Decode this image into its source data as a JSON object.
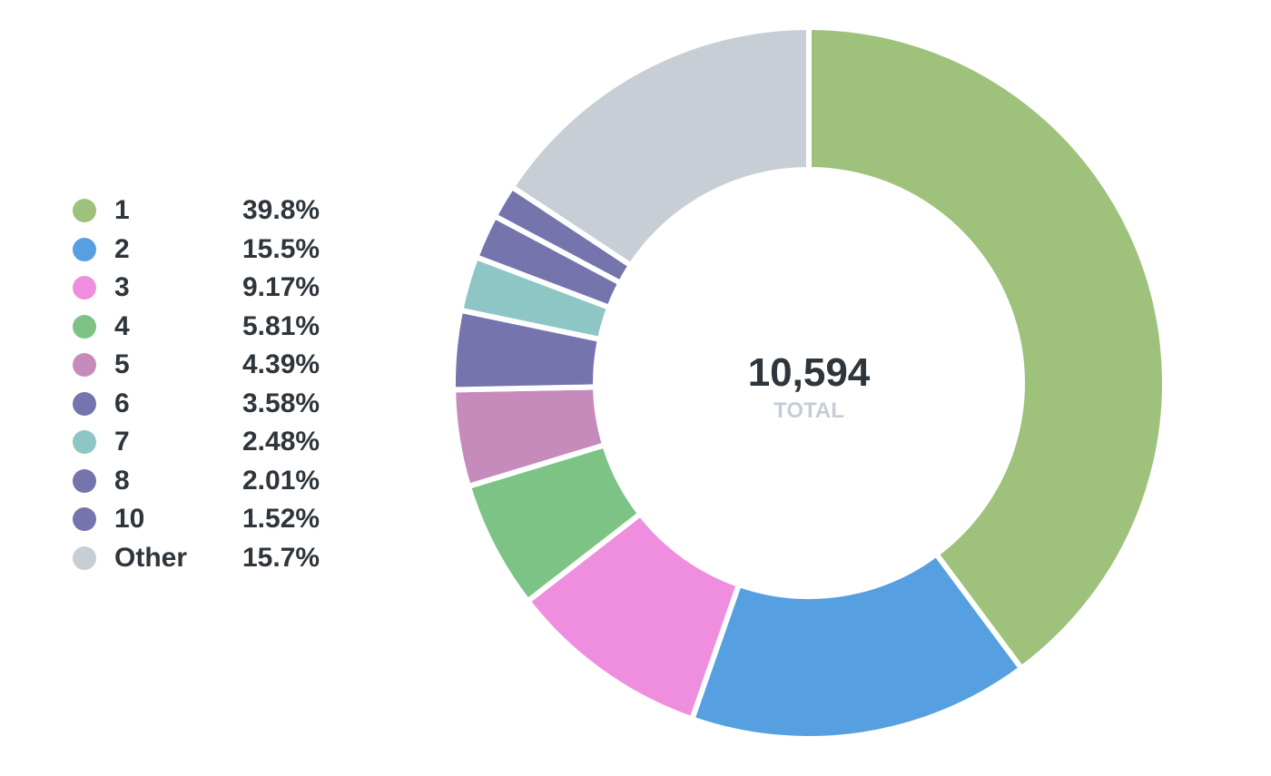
{
  "chart_data": {
    "type": "pie",
    "variant": "donut",
    "categories": [
      "1",
      "2",
      "3",
      "4",
      "5",
      "6",
      "7",
      "8",
      "10",
      "Other"
    ],
    "values": [
      39.8,
      15.5,
      9.17,
      5.81,
      4.39,
      3.58,
      2.48,
      2.01,
      1.52,
      15.7
    ],
    "value_labels": [
      "39.8%",
      "15.5%",
      "9.17%",
      "5.81%",
      "4.39%",
      "3.58%",
      "2.48%",
      "2.01%",
      "1.52%",
      "15.7%"
    ],
    "colors": [
      "#9ec27b",
      "#56a0e1",
      "#ef8ede",
      "#7dc385",
      "#c78bbb",
      "#7574ac",
      "#8dc6c5",
      "#7574ac",
      "#7574ac",
      "#c7ced5"
    ],
    "total_value": "10,594",
    "total_label": "TOTAL",
    "legend_position": "left"
  }
}
